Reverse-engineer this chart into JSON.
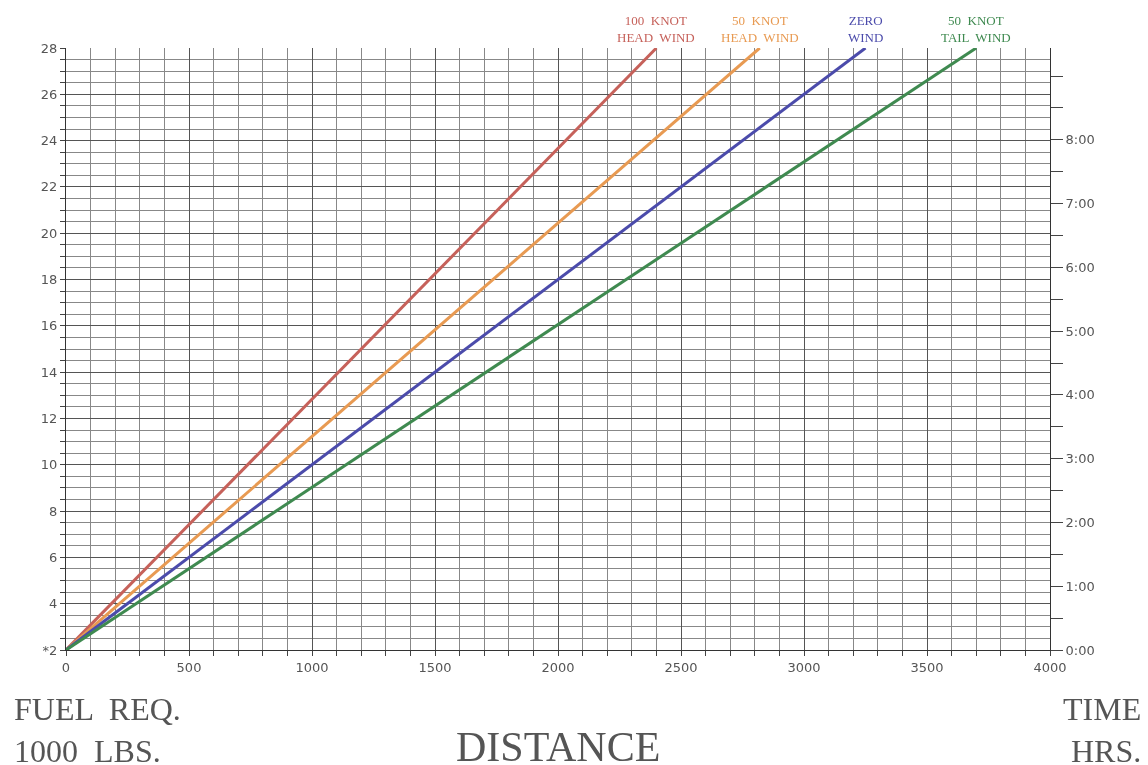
{
  "chart_data": {
    "type": "line",
    "xlabel": "DISTANCE",
    "ylabel": "FUEL  REQ.\n1000  LBS.",
    "y2label": "TIME\nHRS.",
    "series": [
      {
        "name": "100  KNOT\nHEAD  WIND",
        "color": "#c6615a",
        "x": [
          0,
          2400
        ],
        "values": [
          2,
          28
        ]
      },
      {
        "name": "50  KNOT\nHEAD  WIND",
        "color": "#e89a52",
        "x": [
          0,
          2820
        ],
        "values": [
          2,
          28
        ]
      },
      {
        "name": "ZERO\nWIND",
        "color": "#4b4bab",
        "x": [
          0,
          3250
        ],
        "values": [
          2,
          28
        ]
      },
      {
        "name": "50  KNOT\nTAIL  WIND",
        "color": "#3f8a50",
        "x": [
          0,
          3700
        ],
        "values": [
          2,
          28
        ]
      }
    ],
    "xlim": [
      0,
      4000
    ],
    "xticks": [
      0,
      500,
      1000,
      1500,
      2000,
      2500,
      3000,
      3500,
      4000
    ],
    "ylim": [
      2,
      28
    ],
    "yticks": [
      {
        "value": 2,
        "label": "*2"
      },
      4,
      6,
      8,
      10,
      12,
      14,
      16,
      18,
      20,
      22,
      24,
      26,
      28
    ],
    "y2lim": [
      0,
      9.44
    ],
    "y2ticks": [
      {
        "value": 0,
        "label": "0:00"
      },
      {
        "value": 0.5,
        "label": null
      },
      {
        "value": 1,
        "label": "1:00"
      },
      {
        "value": 1.5,
        "label": null
      },
      {
        "value": 2,
        "label": "2:00"
      },
      {
        "value": 2.5,
        "label": null
      },
      {
        "value": 3,
        "label": "3:00"
      },
      {
        "value": 3.5,
        "label": null
      },
      {
        "value": 4,
        "label": "4:00"
      },
      {
        "value": 4.5,
        "label": null
      },
      {
        "value": 5,
        "label": "5:00"
      },
      {
        "value": 5.5,
        "label": null
      },
      {
        "value": 6,
        "label": "6:00"
      },
      {
        "value": 6.5,
        "label": null
      },
      {
        "value": 7,
        "label": "7:00"
      },
      {
        "value": 7.5,
        "label": null
      },
      {
        "value": 8,
        "label": "8:00"
      },
      {
        "value": 8.5,
        "label": null
      },
      {
        "value": 9,
        "label": null
      }
    ],
    "grid": true,
    "legend": false,
    "marker": "none",
    "line_style": "solid"
  }
}
